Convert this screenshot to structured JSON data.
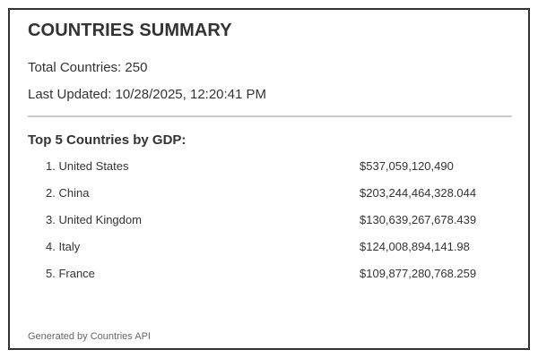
{
  "summary": {
    "title": "COUNTRIES SUMMARY",
    "total_countries": "Total Countries: 250",
    "last_updated": "Last Updated: 10/28/2025, 12:20:41 PM"
  },
  "gdp_section": {
    "title": "Top 5 Countries by GDP:",
    "rows": [
      {
        "rank_name": "1. United States",
        "gdp": "$537,059,120,490"
      },
      {
        "rank_name": "2. China",
        "gdp": "$203,244,464,328.044"
      },
      {
        "rank_name": "3. United Kingdom",
        "gdp": "$130,639,267,678.439"
      },
      {
        "rank_name": "4. Italy",
        "gdp": "$124,008,894,141.98"
      },
      {
        "rank_name": "5. France",
        "gdp": "$109,877,280,768.259"
      }
    ]
  },
  "footer": {
    "text": "Generated by Countries API"
  },
  "colors": {
    "border": "#333333",
    "divider": "#cccccc",
    "text": "#333333",
    "footer_text": "#666666"
  }
}
